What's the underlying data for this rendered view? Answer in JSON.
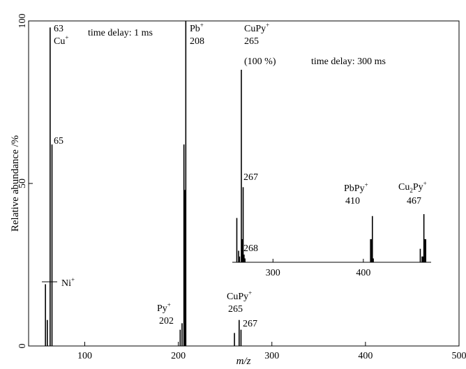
{
  "chart_data": [
    {
      "type": "bar",
      "name": "main",
      "xlabel": "m/z",
      "ylabel": "Relative abundance /%",
      "xlim": [
        40,
        500
      ],
      "ylim": [
        0,
        100
      ],
      "x_ticks": [
        100,
        200,
        300,
        400,
        500
      ],
      "y_ticks": [
        0,
        50,
        100
      ],
      "grid": false,
      "peaks": [
        {
          "x": 58,
          "y": 19
        },
        {
          "x": 60,
          "y": 8
        },
        {
          "x": 63,
          "y": 98
        },
        {
          "x": 65,
          "y": 62
        },
        {
          "x": 202,
          "y": 5
        },
        {
          "x": 204,
          "y": 7
        },
        {
          "x": 206,
          "y": 62
        },
        {
          "x": 207,
          "y": 48
        },
        {
          "x": 208,
          "y": 100
        },
        {
          "x": 260,
          "y": 4
        },
        {
          "x": 265,
          "y": 8
        },
        {
          "x": 267,
          "y": 5
        }
      ],
      "labels": [
        {
          "lines": [
            "63",
            "Cu+"
          ],
          "x": 63
        },
        {
          "lines": [
            "65"
          ],
          "x": 65
        },
        {
          "lines": [
            "Ni+"
          ],
          "x": 58
        },
        {
          "lines": [
            "Pb+",
            "208"
          ],
          "x": 208
        },
        {
          "lines": [
            "Py+",
            "202"
          ],
          "x": 202
        },
        {
          "lines": [
            "CuPy+",
            "265"
          ],
          "x": 265
        },
        {
          "lines": [
            "267"
          ],
          "x": 267
        }
      ],
      "annotation": "time delay: 1 ms"
    },
    {
      "type": "bar",
      "name": "inset",
      "xlim": [
        255,
        475
      ],
      "ylim": [
        0,
        100
      ],
      "x_ticks": [
        300,
        400
      ],
      "grid": false,
      "peaks": [
        {
          "x": 260,
          "y": 23
        },
        {
          "x": 262,
          "y": 6
        },
        {
          "x": 263,
          "y": 3
        },
        {
          "x": 265,
          "y": 100
        },
        {
          "x": 266,
          "y": 12
        },
        {
          "x": 267,
          "y": 39
        },
        {
          "x": 268,
          "y": 4
        },
        {
          "x": 269,
          "y": 2
        },
        {
          "x": 408,
          "y": 12
        },
        {
          "x": 409,
          "y": 12
        },
        {
          "x": 410,
          "y": 24
        },
        {
          "x": 411,
          "y": 2
        },
        {
          "x": 463,
          "y": 7
        },
        {
          "x": 465,
          "y": 3
        },
        {
          "x": 466,
          "y": 3
        },
        {
          "x": 467,
          "y": 25
        },
        {
          "x": 468,
          "y": 12
        },
        {
          "x": 469,
          "y": 12
        }
      ],
      "labels": [
        {
          "lines": [
            "CuPy+",
            "265",
            "(100 %)"
          ],
          "x": 265
        },
        {
          "lines": [
            "267"
          ],
          "x": 267
        },
        {
          "lines": [
            "268"
          ],
          "x": 268
        },
        {
          "lines": [
            "PbPy+",
            "410"
          ],
          "x": 410
        },
        {
          "lines": [
            "Cu2Py+",
            "467"
          ],
          "x": 467
        }
      ],
      "annotation": "time delay: 300 ms"
    }
  ]
}
